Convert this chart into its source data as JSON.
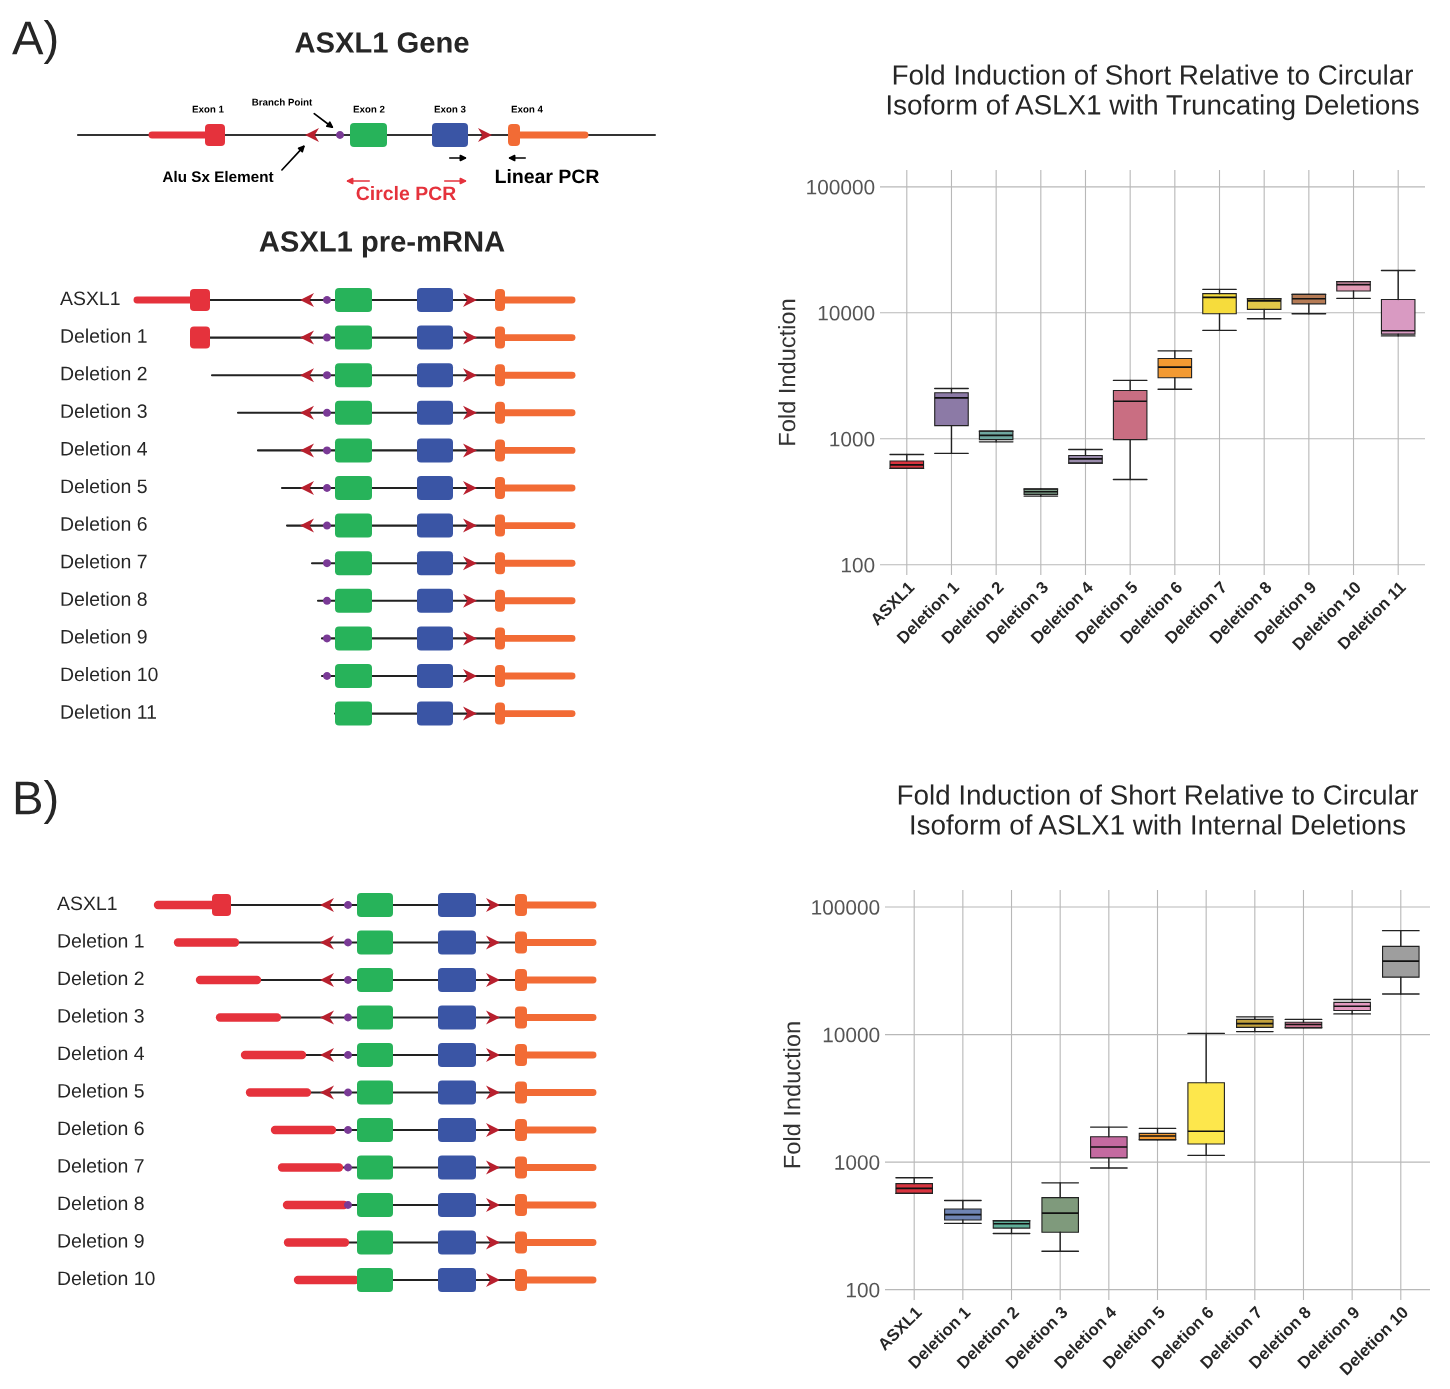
{
  "chart_data": [
    {
      "type": "other",
      "title": "ASXL1 Gene",
      "subtitle": "ASXL1 pre-mRNA",
      "categories": [
        "ASXL1",
        "Deletion 1",
        "Deletion 2",
        "Deletion 3",
        "Deletion 4",
        "Deletion 5",
        "Deletion 6",
        "Deletion 7",
        "Deletion 8",
        "Deletion 9",
        "Deletion 10",
        "Deletion 11"
      ],
      "annotations": [
        "A)",
        "Exon 1",
        "Branch Point",
        "Exon 2",
        "Exon 3",
        "Exon 4",
        "Alu Sx Element",
        "Circle PCR",
        "Linear PCR"
      ]
    },
    {
      "type": "box",
      "title": "Fold Induction of Short Relative to Circular\nIsoform of ASLX1 with Truncating Deletions",
      "ylabel": "Fold Induction",
      "categories": [
        "ASXL1",
        "Deletion 1",
        "Deletion 2",
        "Deletion 3",
        "Deletion 4",
        "Deletion 5",
        "Deletion 6",
        "Deletion 7",
        "Deletion 8",
        "Deletion 9",
        "Deletion 10",
        "Deletion 11"
      ],
      "colors": [
        "#d9343f",
        "#8c7aa6",
        "#6fa7a0",
        "#7fa08a",
        "#9a8bab",
        "#c96e82",
        "#f39a32",
        "#f6dc3c",
        "#e3c94a",
        "#b67b55",
        "#e39bb5",
        "#d99ac2"
      ],
      "boxes": [
        {
          "low": 583,
          "q1": 583,
          "median": 621,
          "q3": 667,
          "high": 750
        },
        {
          "low": 767,
          "q1": 1273,
          "median": 2115,
          "q3": 2320,
          "high": 2510
        },
        {
          "low": 946,
          "q1": 985,
          "median": 1065,
          "q3": 1150,
          "high": 1150
        },
        {
          "low": 351,
          "q1": 362,
          "median": 380,
          "q3": 400,
          "high": 400
        },
        {
          "low": 641,
          "q1": 641,
          "median": 692,
          "q3": 738,
          "high": 822
        },
        {
          "low": 476,
          "q1": 985,
          "median": 1987,
          "q3": 2415,
          "high": 2912
        },
        {
          "low": 2472,
          "q1": 3053,
          "median": 3710,
          "q3": 4336,
          "high": 4990
        },
        {
          "low": 7260,
          "q1": 9840,
          "median": 13250,
          "q3": 14200,
          "high": 15350
        },
        {
          "low": 8970,
          "q1": 10640,
          "median": 12450,
          "q3": 12940,
          "high": 12940
        },
        {
          "low": 9840,
          "q1": 11780,
          "median": 12940,
          "q3": 14000,
          "high": 14000
        },
        {
          "low": 13030,
          "q1": 14890,
          "median": 16740,
          "q3": 17670,
          "high": 17670
        },
        {
          "low": 6560,
          "q1": 6770,
          "median": 7210,
          "q3": 12740,
          "high": 21670
        }
      ],
      "log": "y",
      "ylim": [
        83,
        136000
      ],
      "yticks": [
        100,
        1000,
        10000,
        100000
      ],
      "grid": true
    },
    {
      "type": "other",
      "categories": [
        "ASXL1",
        "Deletion 1",
        "Deletion 2",
        "Deletion 3",
        "Deletion 4",
        "Deletion 5",
        "Deletion 6",
        "Deletion 7",
        "Deletion 8",
        "Deletion 9",
        "Deletion 10"
      ],
      "annotations": [
        "B)"
      ]
    },
    {
      "type": "box",
      "title": "Fold Induction of Short Relative to Circular\nIsoform of ASLX1 with Internal Deletions",
      "ylabel": "Fold Induction",
      "categories": [
        "ASXL1",
        "Deletion 1",
        "Deletion 2",
        "Deletion 3",
        "Deletion 4",
        "Deletion 5",
        "Deletion 6",
        "Deletion 7",
        "Deletion 8",
        "Deletion 9",
        "Deletion 10"
      ],
      "colors": [
        "#d9343f",
        "#6f84b4",
        "#5fae98",
        "#7f9a7c",
        "#c46aa0",
        "#f39a32",
        "#fde74c",
        "#c4a23c",
        "#c97390",
        "#e49ac0",
        "#9e9e9e"
      ],
      "boxes": [
        {
          "low": 569,
          "q1": 569,
          "median": 623,
          "q3": 678,
          "high": 754
        },
        {
          "low": 331,
          "q1": 352,
          "median": 388,
          "q3": 429,
          "high": 500
        },
        {
          "low": 276,
          "q1": 304,
          "median": 329,
          "q3": 347,
          "high": 347
        },
        {
          "low": 200,
          "q1": 282,
          "median": 398,
          "q3": 527,
          "high": 688
        },
        {
          "low": 899,
          "q1": 1079,
          "median": 1315,
          "q3": 1581,
          "high": 1883
        },
        {
          "low": 1497,
          "q1": 1497,
          "median": 1603,
          "q3": 1680,
          "high": 1841
        },
        {
          "low": 1130,
          "q1": 1387,
          "median": 1745,
          "q3": 4196,
          "high": 10230
        },
        {
          "low": 10550,
          "q1": 11380,
          "median": 12190,
          "q3": 13150,
          "high": 13770
        },
        {
          "low": 11300,
          "q1": 11300,
          "median": 12000,
          "q3": 12480,
          "high": 13150
        },
        {
          "low": 14530,
          "q1": 15450,
          "median": 16680,
          "q3": 17870,
          "high": 18840
        },
        {
          "low": 20800,
          "q1": 28200,
          "median": 37670,
          "q3": 49200,
          "high": 65300
        }
      ],
      "log": "y",
      "ylim": [
        83,
        136000
      ],
      "yticks": [
        100,
        1000,
        10000,
        100000
      ],
      "grid": true
    }
  ]
}
